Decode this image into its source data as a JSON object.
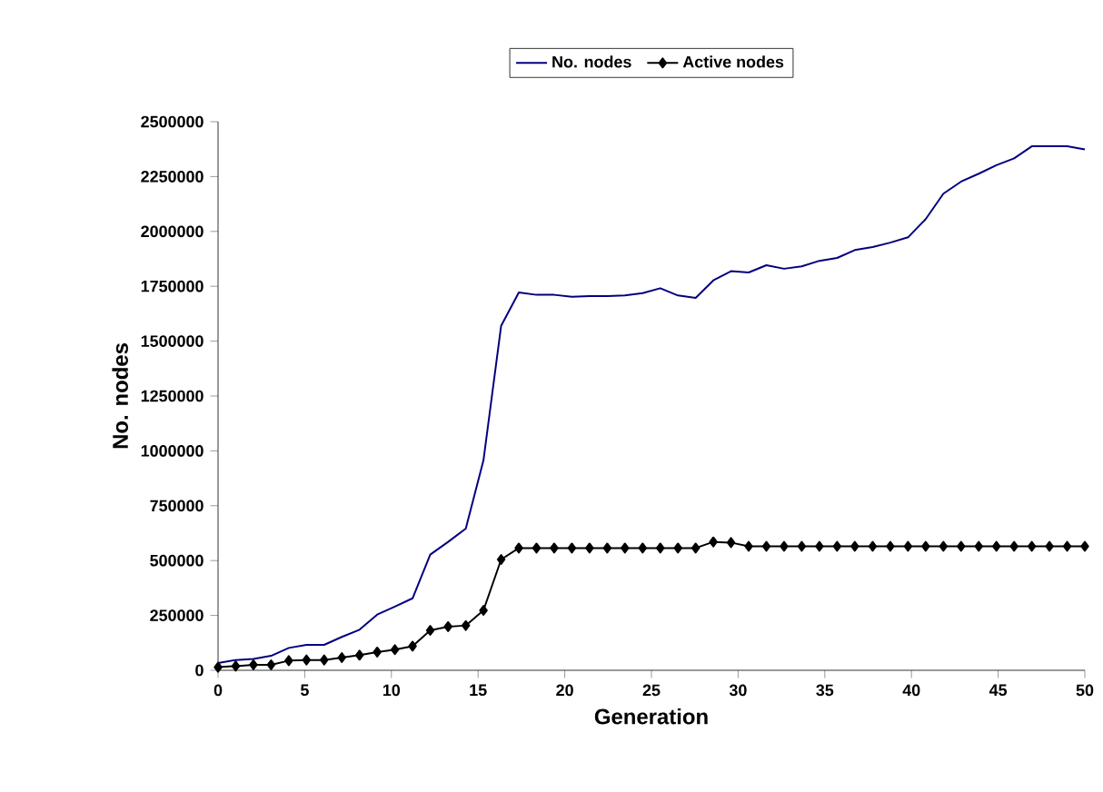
{
  "chart_data": {
    "type": "line",
    "xlabel": "Generation",
    "ylabel": "No. nodes",
    "x": [
      0,
      1.02,
      2.04,
      3.06,
      4.08,
      5.1,
      6.12,
      7.14,
      8.16,
      9.18,
      10.2,
      11.22,
      12.24,
      13.27,
      14.29,
      15.31,
      16.33,
      17.35,
      18.37,
      19.39,
      20.41,
      21.43,
      22.45,
      23.47,
      24.49,
      25.51,
      26.53,
      27.55,
      28.57,
      29.59,
      30.61,
      31.63,
      32.65,
      33.67,
      34.69,
      35.71,
      36.73,
      37.76,
      38.78,
      39.8,
      40.82,
      41.84,
      42.86,
      43.88,
      44.9,
      45.92,
      46.94,
      47.96,
      48.98,
      50
    ],
    "series": [
      {
        "name": "No. nodes",
        "color": "#000080",
        "marker": "none",
        "values": [
          33000,
          47000,
          52000,
          66000,
          102000,
          116000,
          116000,
          152000,
          185000,
          254000,
          290000,
          328000,
          527000,
          585000,
          646000,
          957000,
          1570000,
          1722000,
          1711000,
          1711000,
          1702000,
          1705000,
          1705000,
          1708000,
          1719000,
          1741000,
          1708000,
          1697000,
          1777000,
          1819000,
          1813000,
          1846000,
          1830000,
          1841000,
          1866000,
          1879000,
          1915000,
          1929000,
          1949000,
          1973000,
          2056000,
          2172000,
          2227000,
          2263000,
          2302000,
          2333000,
          2388000,
          2388000,
          2388000,
          2374000
        ]
      },
      {
        "name": "Active nodes",
        "color": "#000000",
        "marker": "diamond",
        "values": [
          14000,
          19000,
          25000,
          25000,
          44000,
          47000,
          47000,
          58000,
          69000,
          83000,
          94000,
          110000,
          182000,
          199000,
          204000,
          273000,
          505000,
          557000,
          557000,
          557000,
          557000,
          557000,
          557000,
          557000,
          557000,
          557000,
          557000,
          557000,
          585000,
          582000,
          565000,
          565000,
          565000,
          565000,
          565000,
          565000,
          565000,
          565000,
          565000,
          565000,
          565000,
          565000,
          565000,
          565000,
          565000,
          565000,
          565000,
          565000,
          565000,
          565000
        ]
      }
    ],
    "xlim": [
      0,
      50
    ],
    "xticks": [
      0,
      5,
      10,
      15,
      20,
      25,
      30,
      35,
      40,
      45,
      50
    ],
    "ylim": [
      0,
      2500000
    ],
    "yticks": [
      0,
      250000,
      500000,
      750000,
      1000000,
      1250000,
      1500000,
      1750000,
      2000000,
      2250000,
      2500000
    ],
    "legend": "top",
    "grid": false
  }
}
